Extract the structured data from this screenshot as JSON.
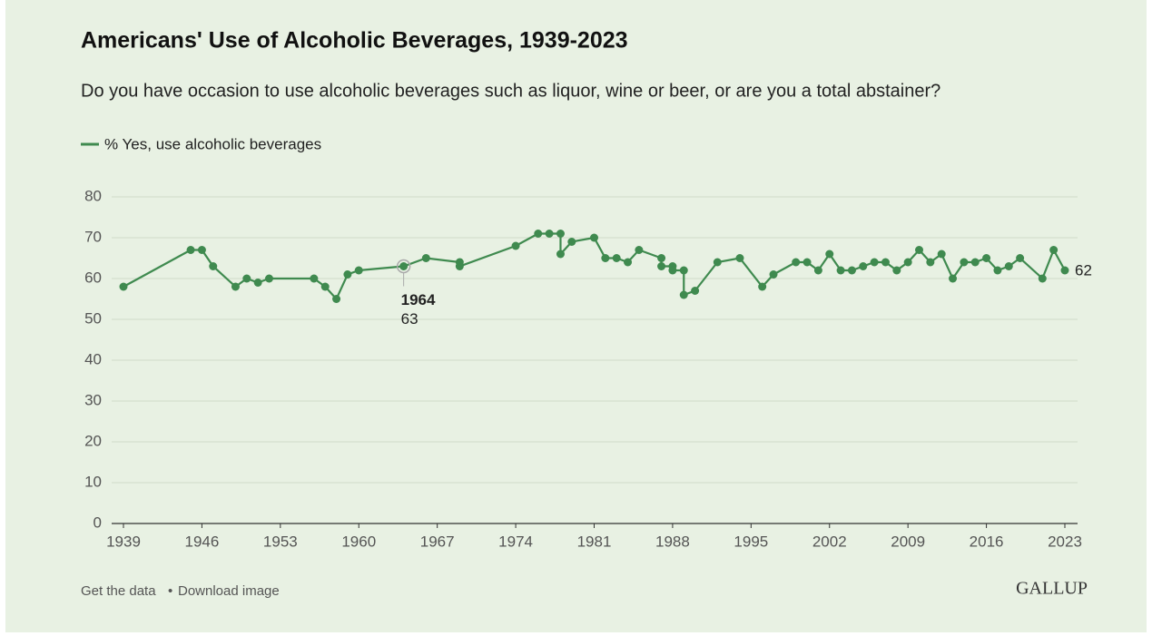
{
  "chart_data": {
    "type": "line",
    "title": "Americans' Use of Alcoholic Beverages, 1939-2023",
    "subtitle": "Do you have occasion to use alcoholic beverages such as liquor, wine or beer, or are you a total abstainer?",
    "x": [
      1939,
      1945,
      1946,
      1947,
      1949,
      1950,
      1951,
      1952,
      1956,
      1957,
      1958,
      1959,
      1960,
      1964,
      1966,
      1969,
      1969,
      1974,
      1976,
      1977,
      1978,
      1978,
      1979,
      1981,
      1982,
      1983,
      1984,
      1985,
      1987,
      1987,
      1988,
      1988,
      1989,
      1989,
      1990,
      1992,
      1994,
      1996,
      1997,
      1999,
      2000,
      2001,
      2002,
      2003,
      2004,
      2005,
      2006,
      2007,
      2008,
      2009,
      2010,
      2011,
      2012,
      2013,
      2014,
      2015,
      2016,
      2017,
      2018,
      2019,
      2021,
      2022,
      2023
    ],
    "series": [
      {
        "name": "% Yes, use alcoholic beverages",
        "color": "#3f8a4f",
        "values": [
          58,
          67,
          67,
          63,
          58,
          60,
          59,
          60,
          60,
          58,
          55,
          61,
          62,
          63,
          65,
          64,
          63,
          68,
          71,
          71,
          71,
          66,
          69,
          70,
          65,
          65,
          64,
          67,
          65,
          63,
          63,
          62,
          62,
          56,
          57,
          64,
          65,
          58,
          61,
          64,
          64,
          62,
          66,
          62,
          62,
          63,
          64,
          64,
          62,
          64,
          67,
          64,
          66,
          60,
          64,
          64,
          65,
          62,
          63,
          65,
          60,
          67,
          62
        ]
      }
    ],
    "xlim": [
      1939,
      2023
    ],
    "xticks": [
      1939,
      1946,
      1953,
      1960,
      1967,
      1974,
      1981,
      1988,
      1995,
      2002,
      2009,
      2016,
      2023
    ],
    "ylim": [
      0,
      80
    ],
    "yticks": [
      0,
      10,
      20,
      30,
      40,
      50,
      60,
      70,
      80
    ],
    "grid": true,
    "footer": {
      "links": [
        "Get the data",
        "Download image"
      ],
      "separator": "•"
    },
    "brand": "GALLUP"
  }
}
